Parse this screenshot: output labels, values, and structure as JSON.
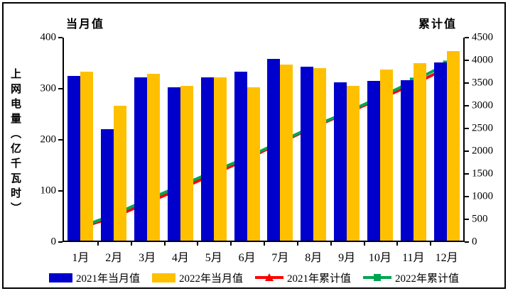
{
  "header": {
    "left_axis_top_label": "当月值",
    "right_axis_top_label": "累计值"
  },
  "y_axis_left": {
    "title": "上网电量（亿千瓦时）",
    "ticks": [
      0,
      100,
      200,
      300,
      400
    ],
    "max": 400
  },
  "y_axis_right": {
    "ticks": [
      0,
      500,
      1000,
      1500,
      2000,
      2500,
      3000,
      3500,
      4000,
      4500
    ],
    "max": 4500
  },
  "chart_data": {
    "type": "bar",
    "title": "",
    "xlabel": "",
    "ylabel_left": "上网电量（亿千瓦时）",
    "ylim_left": [
      0,
      400
    ],
    "ylim_right": [
      0,
      4500
    ],
    "grid": false,
    "legend_position": "bottom",
    "categories": [
      "1月",
      "2月",
      "3月",
      "4月",
      "5月",
      "6月",
      "7月",
      "8月",
      "9月",
      "10月",
      "11月",
      "12月"
    ],
    "series": [
      {
        "name": "2021年当月值",
        "type": "bar",
        "axis": "left",
        "color": "#0000CC",
        "values": [
          325,
          221,
          322,
          303,
          322,
          334,
          359,
          343,
          312,
          315,
          317,
          352
        ]
      },
      {
        "name": "2022年当月值",
        "type": "bar",
        "axis": "left",
        "color": "#FFC000",
        "values": [
          333,
          267,
          329,
          306,
          322,
          303,
          347,
          341,
          305,
          338,
          350,
          374
        ]
      },
      {
        "name": "2021年累计值",
        "type": "line",
        "axis": "right",
        "color": "#FF0000",
        "marker": "triangle",
        "values": [
          325,
          546,
          868,
          1171,
          1493,
          1827,
          2186,
          2529,
          2841,
          3156,
          3473,
          3825
        ]
      },
      {
        "name": "2022年累计值",
        "type": "line",
        "axis": "right",
        "color": "#00A550",
        "marker": "square",
        "values": [
          333,
          600,
          929,
          1235,
          1557,
          1860,
          2207,
          2548,
          2853,
          3191,
          3541,
          3915
        ]
      }
    ]
  }
}
